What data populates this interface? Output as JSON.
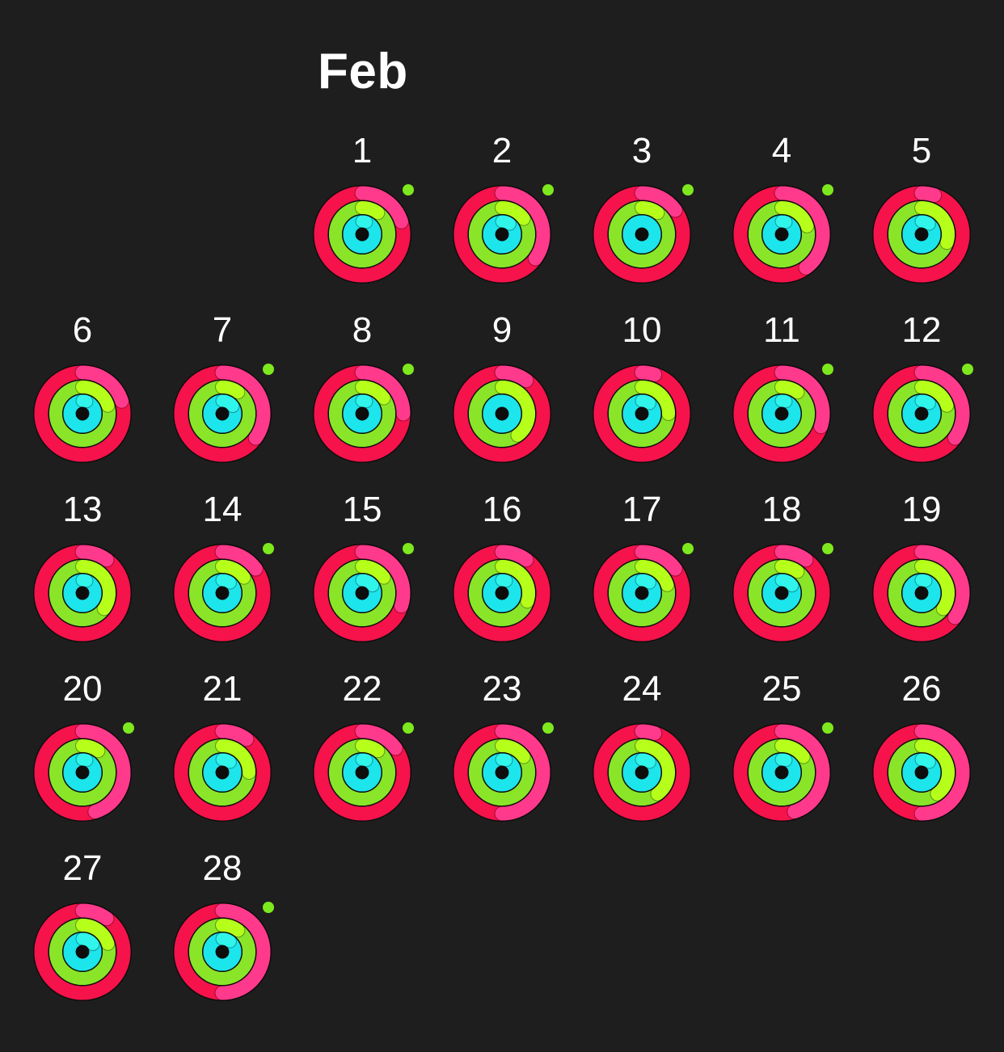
{
  "month": {
    "title": "Feb",
    "first_weekday_column": 2,
    "days": [
      {
        "label": "1",
        "stand_dot": true,
        "move": 1.2,
        "exercise": 1.1,
        "stand": 1.05
      },
      {
        "label": "2",
        "stand_dot": true,
        "move": 1.35,
        "exercise": 1.15,
        "stand": 1.1
      },
      {
        "label": "3",
        "stand_dot": true,
        "move": 1.15,
        "exercise": 1.1,
        "stand": 1.0
      },
      {
        "label": "4",
        "stand_dot": true,
        "move": 1.4,
        "exercise": 1.2,
        "stand": 1.05
      },
      {
        "label": "5",
        "stand_dot": false,
        "move": 1.05,
        "exercise": 1.3,
        "stand": 1.1
      },
      {
        "label": "6",
        "stand_dot": false,
        "move": 1.2,
        "exercise": 1.2,
        "stand": 1.05
      },
      {
        "label": "7",
        "stand_dot": true,
        "move": 1.35,
        "exercise": 1.1,
        "stand": 1.15
      },
      {
        "label": "8",
        "stand_dot": true,
        "move": 1.25,
        "exercise": 1.15,
        "stand": 1.05
      },
      {
        "label": "9",
        "stand_dot": false,
        "move": 1.1,
        "exercise": 1.4,
        "stand": 1.0
      },
      {
        "label": "10",
        "stand_dot": false,
        "move": 1.05,
        "exercise": 1.25,
        "stand": 1.1
      },
      {
        "label": "11",
        "stand_dot": true,
        "move": 1.3,
        "exercise": 1.1,
        "stand": 1.05
      },
      {
        "label": "12",
        "stand_dot": true,
        "move": 1.35,
        "exercise": 1.2,
        "stand": 1.1
      },
      {
        "label": "13",
        "stand_dot": false,
        "move": 1.1,
        "exercise": 1.35,
        "stand": 1.05
      },
      {
        "label": "14",
        "stand_dot": true,
        "move": 1.15,
        "exercise": 1.15,
        "stand": 1.1
      },
      {
        "label": "15",
        "stand_dot": true,
        "move": 1.3,
        "exercise": 1.15,
        "stand": 1.15
      },
      {
        "label": "16",
        "stand_dot": false,
        "move": 1.1,
        "exercise": 1.3,
        "stand": 1.05
      },
      {
        "label": "17",
        "stand_dot": true,
        "move": 1.15,
        "exercise": 1.2,
        "stand": 1.1
      },
      {
        "label": "18",
        "stand_dot": true,
        "move": 1.1,
        "exercise": 1.1,
        "stand": 1.15
      },
      {
        "label": "19",
        "stand_dot": false,
        "move": 1.35,
        "exercise": 1.35,
        "stand": 1.05
      },
      {
        "label": "20",
        "stand_dot": true,
        "move": 1.45,
        "exercise": 1.1,
        "stand": 1.05
      },
      {
        "label": "21",
        "stand_dot": false,
        "move": 1.1,
        "exercise": 1.25,
        "stand": 1.1
      },
      {
        "label": "22",
        "stand_dot": true,
        "move": 1.15,
        "exercise": 1.1,
        "stand": 1.05
      },
      {
        "label": "23",
        "stand_dot": true,
        "move": 1.5,
        "exercise": 1.15,
        "stand": 1.05
      },
      {
        "label": "24",
        "stand_dot": false,
        "move": 1.05,
        "exercise": 1.4,
        "stand": 1.1
      },
      {
        "label": "25",
        "stand_dot": true,
        "move": 1.45,
        "exercise": 1.15,
        "stand": 1.05
      },
      {
        "label": "26",
        "stand_dot": false,
        "move": 1.5,
        "exercise": 1.4,
        "stand": 1.1
      },
      {
        "label": "27",
        "stand_dot": false,
        "move": 1.1,
        "exercise": 1.2,
        "stand": 1.15
      },
      {
        "label": "28",
        "stand_dot": true,
        "move": 1.5,
        "exercise": 1.1,
        "stand": 1.1
      }
    ]
  },
  "colors": {
    "background": "#1e1e1e",
    "text": "#ffffff",
    "move_base": "#fa114f",
    "move_overlap": "#ff3a8c",
    "move_shadow": "#d9203a",
    "exercise_base": "#92e82a",
    "exercise_overlap": "#b6ff1a",
    "exercise_shadow": "#5fd41b",
    "stand_base": "#1eeaef",
    "stand_overlap": "#2ff5ea",
    "stand_shadow": "#10c7d6",
    "stand_dot": "#7ee81e",
    "gap": "#0d0d0d"
  }
}
